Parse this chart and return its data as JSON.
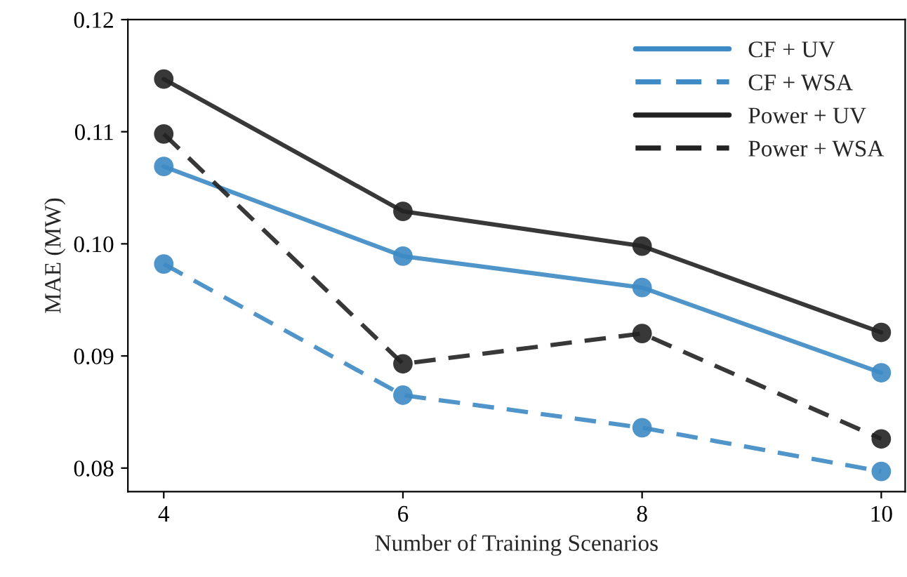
{
  "chart_data": {
    "type": "line",
    "xlabel": "Number of Training Scenarios",
    "ylabel": "MAE (MW)",
    "x": [
      4,
      6,
      8,
      10
    ],
    "series": [
      {
        "name": "CF + UV",
        "color": "#3d8ac4",
        "line_style": "solid",
        "values": [
          0.1069,
          0.0989,
          0.0961,
          0.0885
        ]
      },
      {
        "name": "CF + WSA",
        "color": "#3d8ac4",
        "line_style": "dashed",
        "values": [
          0.0982,
          0.0865,
          0.0836,
          0.0797
        ]
      },
      {
        "name": "Power + UV",
        "color": "#222222",
        "line_style": "solid",
        "values": [
          0.1147,
          0.1029,
          0.0998,
          0.0921
        ]
      },
      {
        "name": "Power + WSA",
        "color": "#222222",
        "line_style": "dashed",
        "values": [
          0.1098,
          0.0893,
          0.092,
          0.0826
        ]
      }
    ],
    "xlim": [
      3.7,
      10.2
    ],
    "xticks": [
      4,
      6,
      8,
      10
    ],
    "ylim": [
      0.0779,
      0.12
    ],
    "yticks": [
      {
        "value": 0.08,
        "label": "0.08"
      },
      {
        "value": 0.09,
        "label": "0.09"
      },
      {
        "value": 0.1,
        "label": "0.10"
      },
      {
        "value": 0.11,
        "label": "0.11"
      },
      {
        "value": 0.12,
        "label": "0.12"
      }
    ],
    "marker": "circle",
    "grid": false,
    "legend": "top right"
  }
}
